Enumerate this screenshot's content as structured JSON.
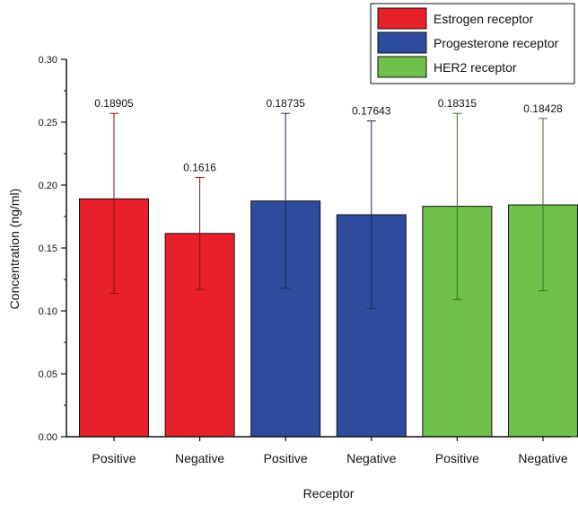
{
  "chart_data": {
    "type": "bar",
    "title": "",
    "xlabel": "Receptor",
    "ylabel": "Concentration (ng/ml)",
    "ylim": [
      0,
      0.3
    ],
    "yticks": [
      0.0,
      0.05,
      0.1,
      0.15,
      0.2,
      0.25,
      0.3
    ],
    "ytick_labels": [
      "0.00",
      "0.05",
      "0.10",
      "0.15",
      "0.20",
      "0.25",
      "0.30"
    ],
    "categories": [
      "Positive",
      "Negative",
      "Positive",
      "Negative",
      "Positive",
      "Negative"
    ],
    "bars": [
      {
        "category": "Positive",
        "series": "Estrogen receptor",
        "value": 0.18905,
        "label": "0.18905",
        "err_low": 0.114,
        "err_high": 0.257
      },
      {
        "category": "Negative",
        "series": "Estrogen receptor",
        "value": 0.1616,
        "label": "0.1616",
        "err_low": 0.117,
        "err_high": 0.206
      },
      {
        "category": "Positive",
        "series": "Progesterone receptor",
        "value": 0.18735,
        "label": "0.18735",
        "err_low": 0.118,
        "err_high": 0.257
      },
      {
        "category": "Negative",
        "series": "Progesterone receptor",
        "value": 0.17643,
        "label": "0.17643",
        "err_low": 0.102,
        "err_high": 0.251
      },
      {
        "category": "Positive",
        "series": "HER2 receptor",
        "value": 0.18315,
        "label": "0.18315",
        "err_low": 0.109,
        "err_high": 0.257
      },
      {
        "category": "Negative",
        "series": "HER2 receptor",
        "value": 0.18428,
        "label": "0.18428",
        "err_low": 0.116,
        "err_high": 0.253
      }
    ],
    "series": [
      {
        "name": "Estrogen receptor",
        "color": "#e8202a"
      },
      {
        "name": "Progesterone receptor",
        "color": "#2e4b9e"
      },
      {
        "name": "HER2 receptor",
        "color": "#6ec04a"
      }
    ],
    "legend_position": "top-right",
    "grid": false
  }
}
